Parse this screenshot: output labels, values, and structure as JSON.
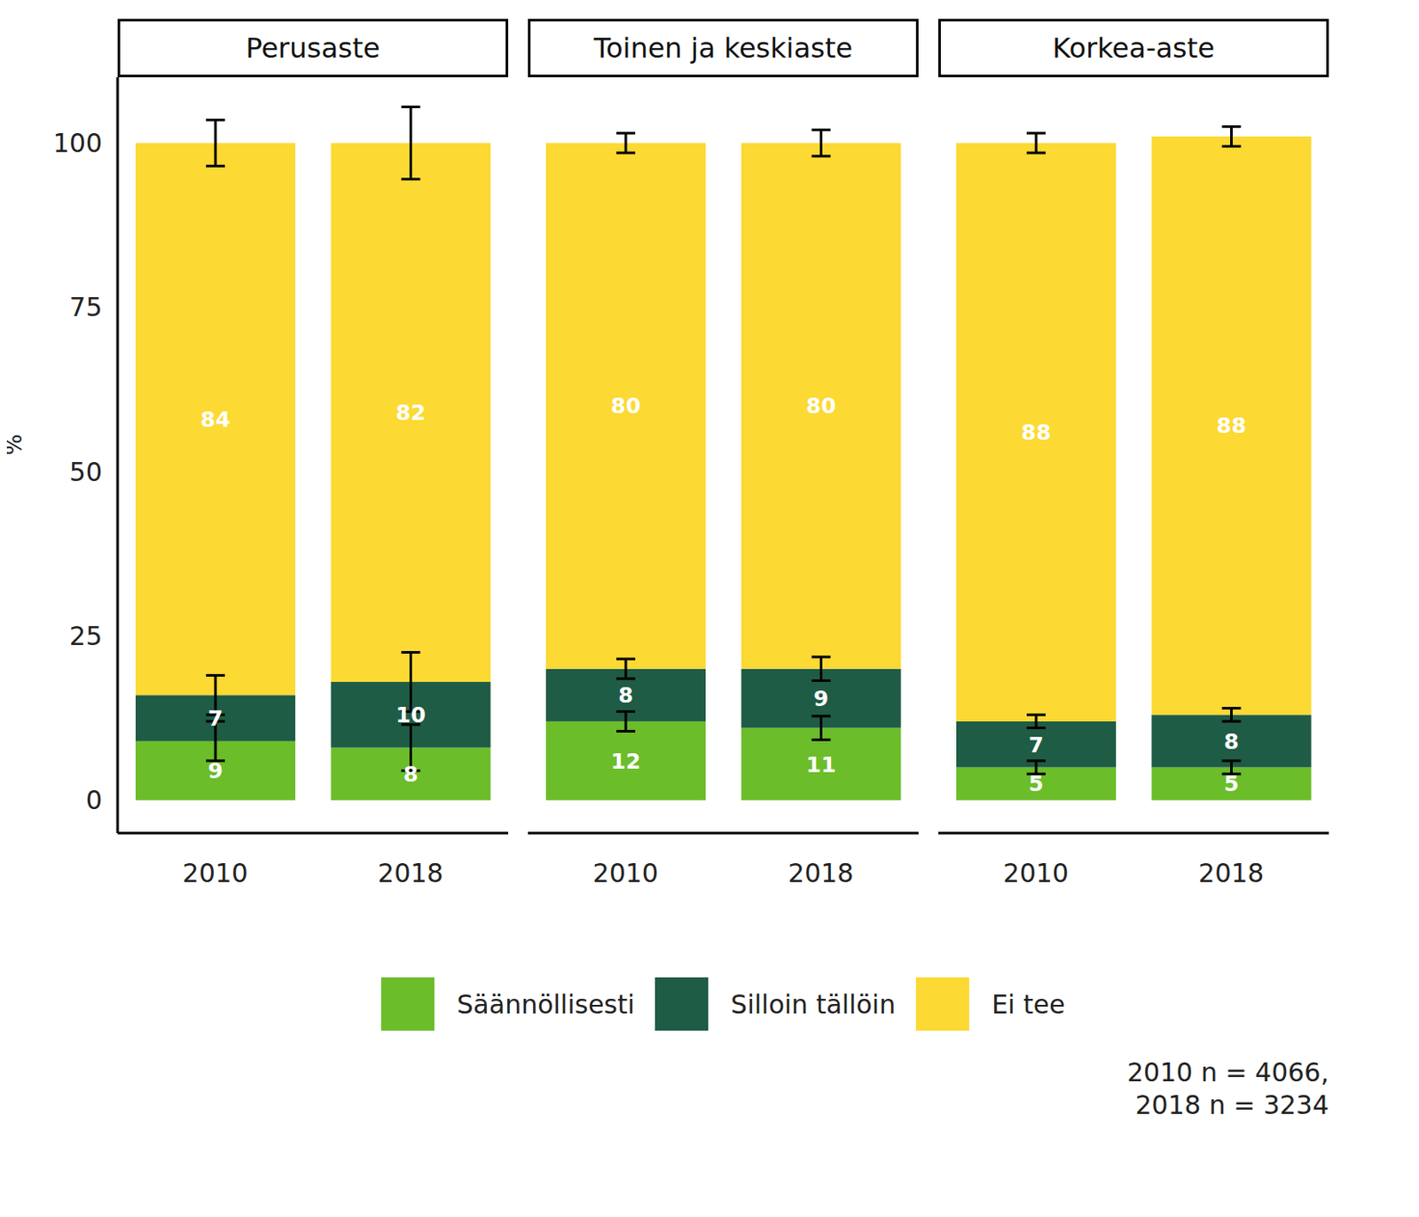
{
  "chart_data": {
    "type": "bar",
    "stacked": true,
    "data_labels": true,
    "ylabel": "%",
    "ylim": [
      -5,
      110
    ],
    "yticks": [
      0,
      25,
      50,
      75,
      100
    ],
    "legend": "bottom",
    "categories": [
      "2010",
      "2018"
    ],
    "series": [
      {
        "name": "Säännöllisesti",
        "color": "#6bbd2a"
      },
      {
        "name": "Silloin tällöin",
        "color": "#1f5c45"
      },
      {
        "name": "Ei tee",
        "color": "#fcd933"
      }
    ],
    "facets": [
      {
        "title": "Perusaste",
        "values": [
          [
            9,
            8
          ],
          [
            7,
            10
          ],
          [
            84,
            82
          ]
        ],
        "errors": [
          [
            3,
            3.5
          ],
          [
            3,
            4.5
          ],
          [
            3.5,
            5.5
          ]
        ]
      },
      {
        "title": "Toinen ja keskiaste",
        "values": [
          [
            12,
            11
          ],
          [
            8,
            9
          ],
          [
            80,
            80
          ]
        ],
        "errors": [
          [
            1.5,
            1.8
          ],
          [
            1.5,
            1.8
          ],
          [
            1.5,
            2
          ]
        ]
      },
      {
        "title": "Korkea-aste",
        "values": [
          [
            5,
            5
          ],
          [
            7,
            8
          ],
          [
            88,
            88
          ]
        ],
        "errors": [
          [
            1,
            1
          ],
          [
            1,
            1
          ],
          [
            1.5,
            1.5
          ]
        ]
      }
    ],
    "annotations": [
      "2010 n = 4066,",
      "2018 n = 3234"
    ]
  }
}
